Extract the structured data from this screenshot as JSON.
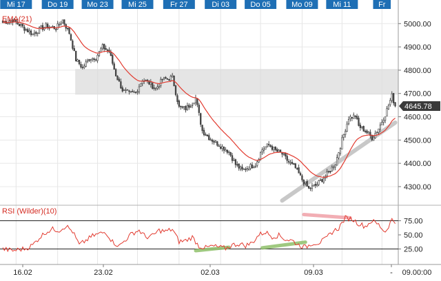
{
  "chart_data": [
    {
      "type": "candlestick",
      "panel": "price",
      "indicator_label": "EMA(21)",
      "top_date_labels": [
        "Mi 17",
        "Do 19",
        "Mo 23",
        "Mi 25",
        "Fr 27",
        "Di 03",
        "Do 05",
        "Mo 09",
        "Mi 11",
        "Fr"
      ],
      "y_ticks": [
        4300,
        4400,
        4500,
        4600,
        4700,
        4800,
        4900,
        5000
      ],
      "y_tick_labels": [
        "4300.00",
        "4400.00",
        "4500.00",
        "4600.00",
        "4700.00",
        "4800.00",
        "4900.00",
        "5000.00"
      ],
      "ylim": [
        4220,
        5060
      ],
      "last_price": 4645.78,
      "last_price_label": "4645.78",
      "resistance_zone": [
        4695,
        4805
      ],
      "close_anchors": [
        [
          0,
          5005
        ],
        [
          6,
          5015
        ],
        [
          12,
          4985
        ],
        [
          18,
          4955
        ],
        [
          22,
          4975
        ],
        [
          26,
          4990
        ],
        [
          32,
          4980
        ],
        [
          36,
          5015
        ],
        [
          40,
          4960
        ],
        [
          44,
          4845
        ],
        [
          48,
          4810
        ],
        [
          52,
          4850
        ],
        [
          56,
          4855
        ],
        [
          60,
          4900
        ],
        [
          64,
          4880
        ],
        [
          68,
          4780
        ],
        [
          72,
          4715
        ],
        [
          76,
          4700
        ],
        [
          80,
          4705
        ],
        [
          84,
          4760
        ],
        [
          88,
          4745
        ],
        [
          92,
          4720
        ],
        [
          96,
          4760
        ],
        [
          100,
          4765
        ],
        [
          102,
          4770
        ],
        [
          106,
          4640
        ],
        [
          110,
          4635
        ],
        [
          114,
          4660
        ],
        [
          116,
          4680
        ],
        [
          120,
          4540
        ],
        [
          124,
          4510
        ],
        [
          128,
          4490
        ],
        [
          132,
          4470
        ],
        [
          136,
          4450
        ],
        [
          140,
          4395
        ],
        [
          144,
          4370
        ],
        [
          148,
          4385
        ],
        [
          152,
          4395
        ],
        [
          156,
          4460
        ],
        [
          160,
          4480
        ],
        [
          164,
          4455
        ],
        [
          168,
          4440
        ],
        [
          172,
          4405
        ],
        [
          176,
          4380
        ],
        [
          180,
          4330
        ],
        [
          184,
          4290
        ],
        [
          188,
          4305
        ],
        [
          192,
          4330
        ],
        [
          196,
          4360
        ],
        [
          200,
          4400
        ],
        [
          204,
          4500
        ],
        [
          208,
          4595
        ],
        [
          212,
          4605
        ],
        [
          214,
          4560
        ],
        [
          218,
          4540
        ],
        [
          222,
          4510
        ],
        [
          226,
          4550
        ],
        [
          230,
          4610
        ],
        [
          234,
          4690
        ],
        [
          236,
          4645.78
        ]
      ],
      "trendline": [
        [
          168,
          4240
        ],
        [
          236,
          4575
        ]
      ],
      "trendline_color": "#c8c8c8",
      "ema_color": "#e23a2f",
      "candle_up_color": "#ffffff",
      "candle_down_color": "#4a4a4a",
      "candle_outline_color": "#3a3a3a"
    },
    {
      "type": "line",
      "panel": "indicator",
      "title": "RSI (Wilder)(10)",
      "y_ticks": [
        25,
        50,
        75
      ],
      "y_tick_labels": [
        "25.00",
        "50.00",
        "75.00"
      ],
      "ylim": [
        0,
        100
      ],
      "reference_lines": [
        25,
        75
      ],
      "values_anchors": [
        [
          0,
          25
        ],
        [
          6,
          22
        ],
        [
          10,
          24
        ],
        [
          14,
          26
        ],
        [
          18,
          32
        ],
        [
          22,
          45
        ],
        [
          26,
          55
        ],
        [
          30,
          60
        ],
        [
          34,
          58
        ],
        [
          38,
          66
        ],
        [
          42,
          56
        ],
        [
          46,
          32
        ],
        [
          50,
          40
        ],
        [
          54,
          48
        ],
        [
          58,
          52
        ],
        [
          62,
          55
        ],
        [
          66,
          38
        ],
        [
          70,
          30
        ],
        [
          74,
          42
        ],
        [
          78,
          53
        ],
        [
          82,
          58
        ],
        [
          86,
          46
        ],
        [
          90,
          48
        ],
        [
          94,
          58
        ],
        [
          98,
          56
        ],
        [
          102,
          60
        ],
        [
          106,
          38
        ],
        [
          110,
          40
        ],
        [
          114,
          46
        ],
        [
          118,
          30
        ],
        [
          122,
          27
        ],
        [
          126,
          30
        ],
        [
          130,
          28
        ],
        [
          134,
          26
        ],
        [
          138,
          32
        ],
        [
          142,
          34
        ],
        [
          146,
          31
        ],
        [
          150,
          36
        ],
        [
          154,
          50
        ],
        [
          158,
          55
        ],
        [
          162,
          47
        ],
        [
          166,
          49
        ],
        [
          170,
          42
        ],
        [
          174,
          40
        ],
        [
          178,
          32
        ],
        [
          182,
          28
        ],
        [
          186,
          35
        ],
        [
          190,
          36
        ],
        [
          194,
          42
        ],
        [
          198,
          55
        ],
        [
          202,
          62
        ],
        [
          206,
          80
        ],
        [
          210,
          78
        ],
        [
          214,
          70
        ],
        [
          218,
          65
        ],
        [
          222,
          75
        ],
        [
          226,
          68
        ],
        [
          230,
          55
        ],
        [
          234,
          77
        ],
        [
          236,
          72
        ]
      ],
      "divergence_lines": [
        {
          "from": [
            116,
            22
          ],
          "to": [
            136,
            28
          ],
          "color": "#8fc06b"
        },
        {
          "from": [
            156,
            27
          ],
          "to": [
            182,
            37
          ],
          "color": "#8fc06b"
        },
        {
          "from": [
            181,
            86
          ],
          "to": [
            209,
            80
          ],
          "color": "#f0a0a8"
        }
      ],
      "line_color": "#e23a2f"
    },
    {
      "type": "axis",
      "panel": "x-axis",
      "tick_labels": [
        "16.02",
        "23.02",
        "02.03",
        "09.03",
        "-",
        "09.00:00"
      ]
    }
  ]
}
